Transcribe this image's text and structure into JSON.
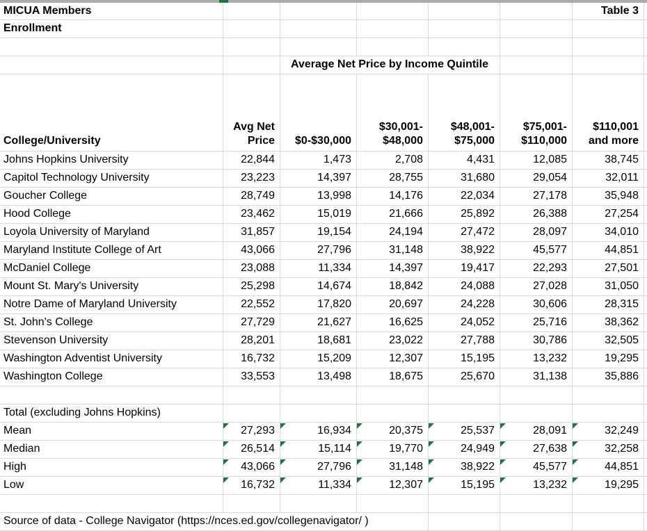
{
  "sheet": {
    "title": "MICUA Members",
    "subtitle": "Enrollment",
    "table_label": "Table 3",
    "section_header": "Average Net Price by Income Quintile",
    "source_note": "Source of data - College Navigator (https://nces.ed.gov/collegenavigator/ )"
  },
  "columns": {
    "college": "College/University",
    "quintiles": [
      "Avg Net\nPrice",
      "$0-$30,000",
      "$30,001-\n$48,000",
      "$48,001-\n$75,000",
      "$75,001-\n$110,000",
      "$110,001\nand more"
    ]
  },
  "rows": [
    {
      "name": "Johns Hopkins University",
      "values": [
        "22,844",
        "1,473",
        "2,708",
        "4,431",
        "12,085",
        "38,745"
      ]
    },
    {
      "name": "Capitol Technology University",
      "values": [
        "23,223",
        "14,397",
        "28,755",
        "31,680",
        "29,054",
        "32,011"
      ]
    },
    {
      "name": "Goucher College",
      "values": [
        "28,749",
        "13,998",
        "14,176",
        "22,034",
        "27,178",
        "35,948"
      ]
    },
    {
      "name": "Hood College",
      "values": [
        "23,462",
        "15,019",
        "21,666",
        "25,892",
        "26,388",
        "27,254"
      ]
    },
    {
      "name": "Loyola University of Maryland",
      "values": [
        "31,857",
        "19,154",
        "24,194",
        "27,472",
        "28,097",
        "34,010"
      ]
    },
    {
      "name": "Maryland Institute College of Art",
      "values": [
        "43,066",
        "27,796",
        "31,148",
        "38,922",
        "45,577",
        "44,851"
      ]
    },
    {
      "name": "McDaniel College",
      "values": [
        "23,088",
        "11,334",
        "14,397",
        "19,417",
        "22,293",
        "27,501"
      ]
    },
    {
      "name": "Mount St. Mary's University",
      "values": [
        "25,298",
        "14,674",
        "18,842",
        "24,088",
        "27,028",
        "31,050"
      ]
    },
    {
      "name": "Notre Dame of Maryland University",
      "values": [
        "22,552",
        "17,820",
        "20,697",
        "24,228",
        "30,606",
        "28,315"
      ]
    },
    {
      "name": "St. John's College",
      "values": [
        "27,729",
        "21,627",
        "16,625",
        "24,052",
        "25,716",
        "38,362"
      ]
    },
    {
      "name": "Stevenson University",
      "values": [
        "28,201",
        "18,681",
        "23,022",
        "27,788",
        "30,786",
        "32,505"
      ]
    },
    {
      "name": "Washington Adventist University",
      "values": [
        "16,732",
        "15,209",
        "12,307",
        "15,195",
        "13,232",
        "19,295"
      ]
    },
    {
      "name": "Washington College",
      "values": [
        "33,553",
        "13,498",
        "18,675",
        "25,670",
        "31,138",
        "35,886"
      ]
    }
  ],
  "summary_label": "Total (excluding Johns Hopkins)",
  "summary_rows": [
    {
      "name": "Mean",
      "values": [
        "27,293",
        "16,934",
        "20,375",
        "25,537",
        "28,091",
        "32,249"
      ]
    },
    {
      "name": "Median",
      "values": [
        "26,514",
        "15,114",
        "19,770",
        "24,949",
        "27,638",
        "32,258"
      ]
    },
    {
      "name": "High",
      "values": [
        "43,066",
        "27,796",
        "31,148",
        "38,922",
        "45,577",
        "44,851"
      ]
    },
    {
      "name": "Low",
      "values": [
        "16,732",
        "11,334",
        "12,307",
        "15,195",
        "13,232",
        "19,295"
      ]
    }
  ],
  "icons": {
    "cell_error_indicator": "green-triangle-top-left"
  },
  "colors": {
    "gridline": "#d9d9d9",
    "indicator_green": "#217346",
    "top_border": "#ababab",
    "text": "#000000"
  }
}
